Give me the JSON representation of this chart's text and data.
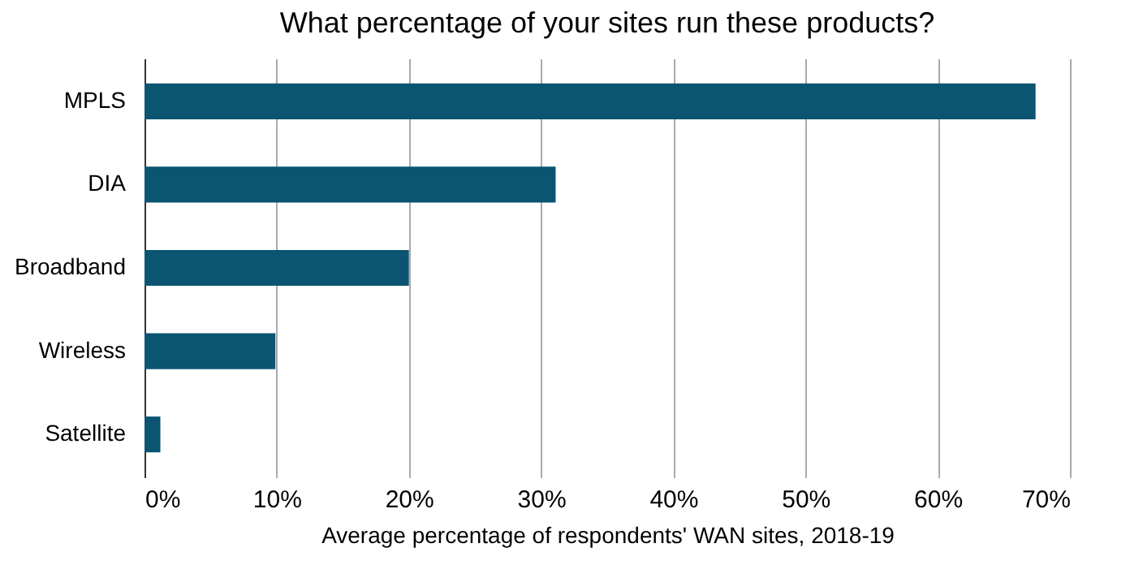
{
  "chart_data": {
    "type": "bar",
    "orientation": "horizontal",
    "title": "What percentage of your sites run these products?",
    "xlabel": "Average percentage of respondents' WAN sites, 2018-19",
    "categories": [
      "MPLS",
      "DIA",
      "Broadband",
      "Wireless",
      "Satellite"
    ],
    "values": [
      67.4,
      31.1,
      20,
      9.9,
      1.2
    ],
    "color": "#0b5572",
    "xlim": [
      0,
      70
    ],
    "xticks": [
      {
        "value": 0,
        "label": "0%"
      },
      {
        "value": 10,
        "label": "10%"
      },
      {
        "value": 20,
        "label": "20%"
      },
      {
        "value": 30,
        "label": "30%"
      },
      {
        "value": 40,
        "label": "40%"
      },
      {
        "value": 50,
        "label": "50%"
      },
      {
        "value": 60,
        "label": "60%"
      },
      {
        "value": 70,
        "label": "70%"
      }
    ],
    "grid": "x"
  }
}
